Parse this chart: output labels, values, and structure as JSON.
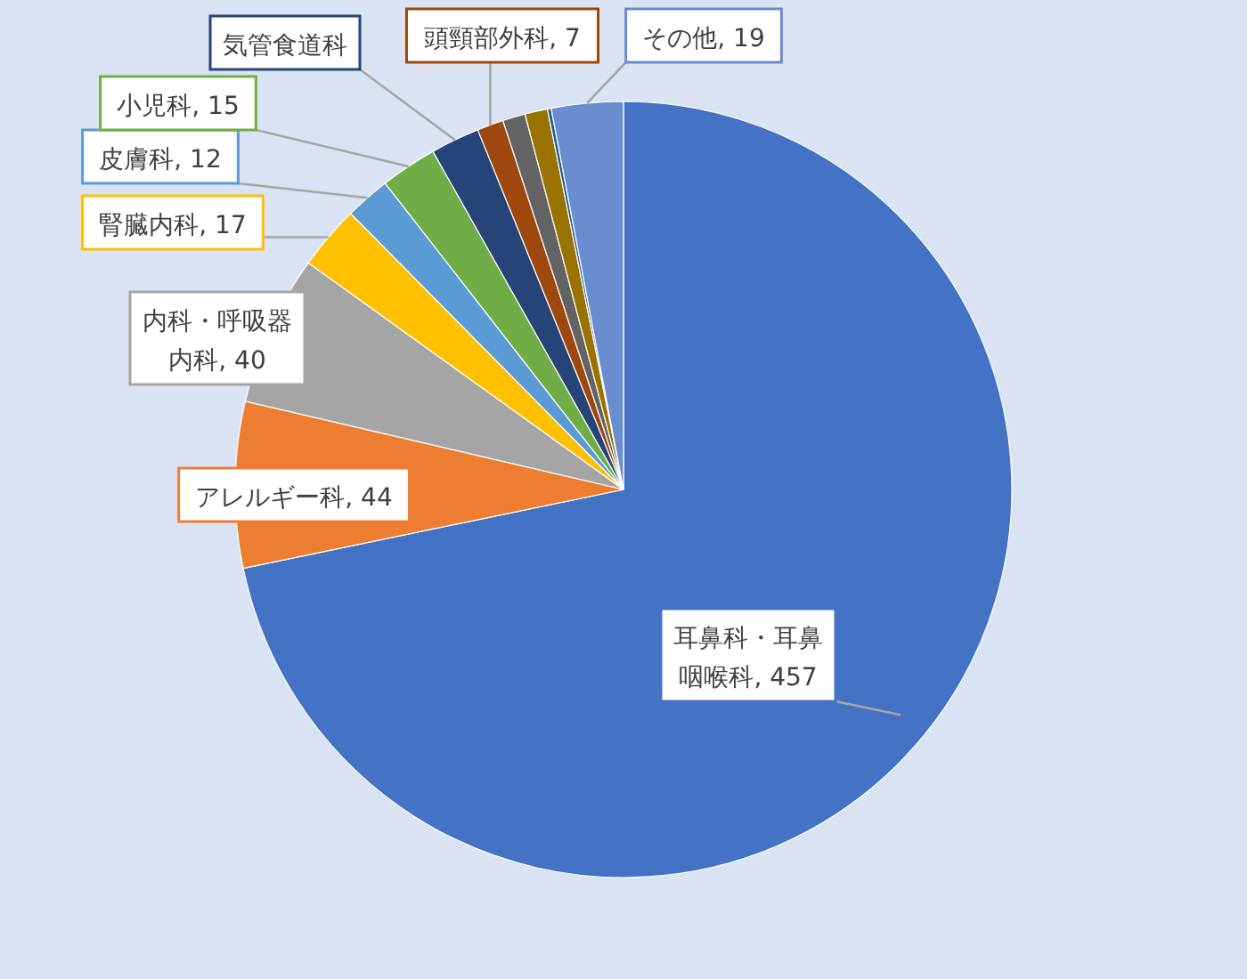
{
  "chart_data": {
    "type": "pie",
    "categories": [
      "耳鼻科・耳鼻咽喉科",
      "アレルギー科",
      "内科・呼吸器内科",
      "腎臓内科",
      "皮膚科",
      "小児科",
      "気管食道科",
      "頭頸部外科",
      null,
      null,
      null,
      "その他"
    ],
    "values": [
      457,
      44,
      40,
      17,
      12,
      15,
      13,
      7,
      6,
      6,
      1,
      19
    ],
    "value_labels": [
      "457",
      "44",
      "40",
      "17",
      "12",
      "15",
      null,
      "7",
      null,
      null,
      null,
      "19"
    ],
    "colors": [
      "#4472c4",
      "#ed7d31",
      "#a5a5a5",
      "#ffc000",
      "#5b9bd5",
      "#70ad47",
      "#264478",
      "#9e480e",
      "#636363",
      "#997300",
      "#255e91",
      "#698ed0"
    ],
    "data_labels": false
  }
}
